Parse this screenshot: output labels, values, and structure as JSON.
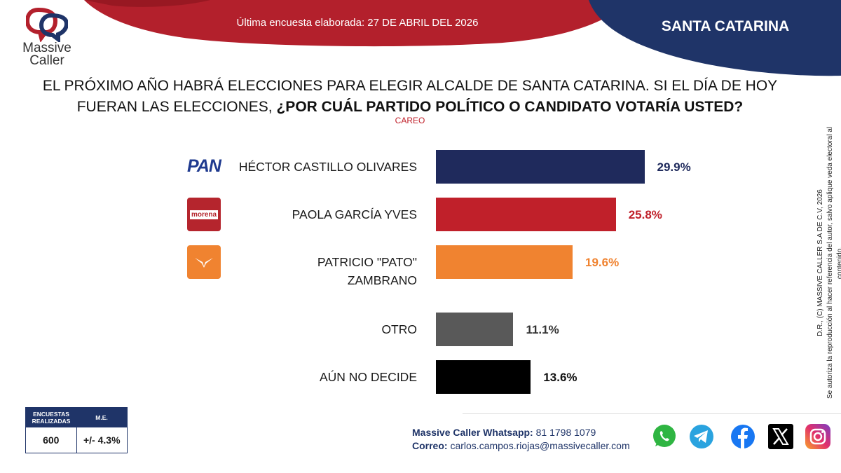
{
  "header": {
    "logo_line1": "Massive",
    "logo_line2": "Caller",
    "survey_date": "Última encuesta elaborada: 27 DE ABRIL DEL 2026",
    "region": "SANTA CATARINA",
    "colors": {
      "red": "#b3202c",
      "navy": "#1f3468"
    }
  },
  "question": {
    "part1": "EL PRÓXIMO AÑO HABRÁ ELECCIONES PARA ELEGIR ALCALDE DE SANTA CATARINA. SI EL DÍA DE HOY FUERAN LAS ELECCIONES, ",
    "part2": "¿POR CUÁL PARTIDO POLÍTICO O CANDIDATO VOTARÍA USTED?",
    "subtitle": "CAREO"
  },
  "parties": {
    "pan_label": "PAN",
    "morena_label": "morena"
  },
  "chart_data": {
    "type": "bar",
    "orientation": "horizontal",
    "unit": "%",
    "categories": [
      "HÉCTOR CASTILLO OLIVARES",
      "PAOLA GARCÍA YVES",
      "PATRICIO \"PATO\" ZAMBRANO",
      "OTRO",
      "AÚN NO DECIDE"
    ],
    "category_lines": [
      [
        "HÉCTOR CASTILLO OLIVARES"
      ],
      [
        "PAOLA GARCÍA YVES"
      ],
      [
        "PATRICIO \"PATO\"",
        "ZAMBRANO"
      ],
      [
        "OTRO"
      ],
      [
        "AÚN NO DECIDE"
      ]
    ],
    "values": [
      29.9,
      25.8,
      19.6,
      11.1,
      13.6
    ],
    "value_labels": [
      "29.9%",
      "25.8%",
      "19.6%",
      "11.1%",
      "13.6%"
    ],
    "bar_colors": [
      "#1f2a5c",
      "#c0202a",
      "#f08330",
      "#595959",
      "#000000"
    ],
    "label_colors": [
      "#1f2a5c",
      "#c0202a",
      "#f08330",
      "#333333",
      "#111111"
    ],
    "party_icons": [
      "pan-icon",
      "morena-icon",
      "movimiento-ciudadano-icon",
      "",
      ""
    ],
    "xlim": [
      0,
      40
    ],
    "grid": false,
    "legend": false
  },
  "stats": {
    "col1_header": "ENCUESTAS REALIZADAS",
    "col2_header": "M.E.",
    "col1_value": "600",
    "col2_value": "+/- 4.3%"
  },
  "contact": {
    "whatsapp_label": "Massive Caller Whatsapp:",
    "whatsapp_value": "81 1798 1079",
    "email_label": "Correo:",
    "email_value": "carlos.campos.riojas@massivecaller.com"
  },
  "social_icons": [
    "whatsapp-icon",
    "telegram-icon",
    "facebook-icon",
    "x-icon",
    "instagram-icon"
  ],
  "legal": {
    "line1": "D.R., (C) MASSIVE CALLER S.A DE C.V, 2026",
    "line2": "Se autoriza la reproducción al hacer referencia del autor, salvo aplique veda electoral al contenido."
  }
}
